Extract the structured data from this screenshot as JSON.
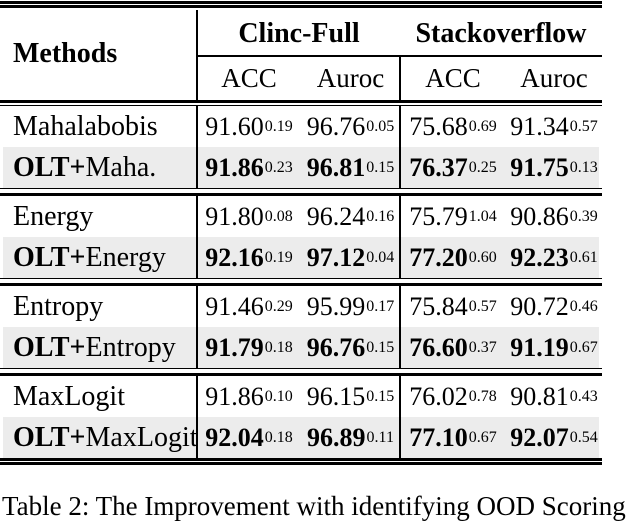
{
  "header": {
    "methods_label": "Methods",
    "dataset1": "Clinc-Full",
    "dataset2": "Stackoverflow",
    "sub_headers": [
      "ACC",
      "Auroc",
      "ACC",
      "Auroc"
    ]
  },
  "groups": [
    {
      "rows": [
        {
          "prefix": "",
          "name": "Mahalabobis",
          "cells": [
            {
              "v": "91.60",
              "s": "0.19"
            },
            {
              "v": "96.76",
              "s": "0.05"
            },
            {
              "v": "75.68",
              "s": "0.69"
            },
            {
              "v": "91.34",
              "s": "0.57"
            }
          ]
        },
        {
          "prefix": "OLT+",
          "name": "Maha.",
          "cells": [
            {
              "v": "91.86",
              "s": "0.23"
            },
            {
              "v": "96.81",
              "s": "0.15"
            },
            {
              "v": "76.37",
              "s": "0.25"
            },
            {
              "v": "91.75",
              "s": "0.13"
            }
          ]
        }
      ]
    },
    {
      "rows": [
        {
          "prefix": "",
          "name": "Energy",
          "cells": [
            {
              "v": "91.80",
              "s": "0.08"
            },
            {
              "v": "96.24",
              "s": "0.16"
            },
            {
              "v": "75.79",
              "s": "1.04"
            },
            {
              "v": "90.86",
              "s": "0.39"
            }
          ]
        },
        {
          "prefix": "OLT+",
          "name": "Energy",
          "cells": [
            {
              "v": "92.16",
              "s": "0.19"
            },
            {
              "v": "97.12",
              "s": "0.04"
            },
            {
              "v": "77.20",
              "s": "0.60"
            },
            {
              "v": "92.23",
              "s": "0.61"
            }
          ]
        }
      ]
    },
    {
      "rows": [
        {
          "prefix": "",
          "name": "Entropy",
          "cells": [
            {
              "v": "91.46",
              "s": "0.29"
            },
            {
              "v": "95.99",
              "s": "0.17"
            },
            {
              "v": "75.84",
              "s": "0.57"
            },
            {
              "v": "90.72",
              "s": "0.46"
            }
          ]
        },
        {
          "prefix": "OLT+",
          "name": "Entropy",
          "cells": [
            {
              "v": "91.79",
              "s": "0.18"
            },
            {
              "v": "96.76",
              "s": "0.15"
            },
            {
              "v": "76.60",
              "s": "0.37"
            },
            {
              "v": "91.19",
              "s": "0.67"
            }
          ]
        }
      ]
    },
    {
      "rows": [
        {
          "prefix": "",
          "name": "MaxLogit",
          "cells": [
            {
              "v": "91.86",
              "s": "0.10"
            },
            {
              "v": "96.15",
              "s": "0.15"
            },
            {
              "v": "76.02",
              "s": "0.78"
            },
            {
              "v": "90.81",
              "s": "0.43"
            }
          ]
        },
        {
          "prefix": "OLT+",
          "name": "MaxLogit",
          "cells": [
            {
              "v": "92.04",
              "s": "0.18"
            },
            {
              "v": "96.89",
              "s": "0.11"
            },
            {
              "v": "77.10",
              "s": "0.67"
            },
            {
              "v": "92.07",
              "s": "0.54"
            }
          ]
        }
      ]
    }
  ],
  "caption": "Table 2: The Improvement with identifying OOD Scoring",
  "colors": {
    "stripe": "#ececec",
    "rule": "#000000",
    "text": "#000000",
    "background": "#ffffff"
  }
}
